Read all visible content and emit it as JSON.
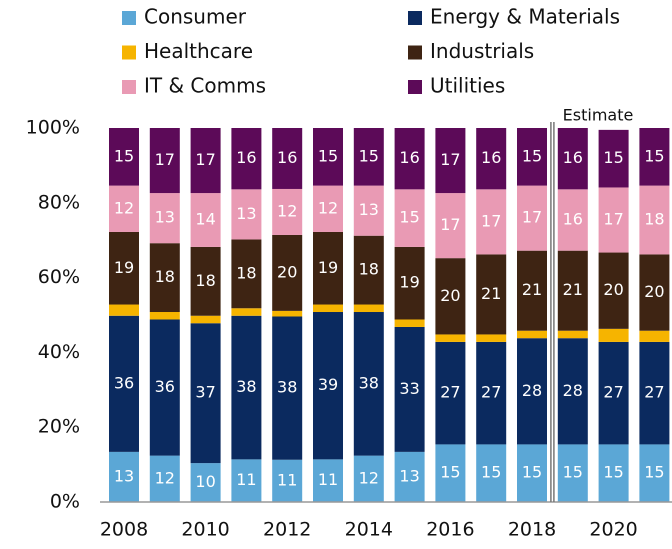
{
  "chart_data": {
    "type": "stacked_bar",
    "categories": [
      "2008",
      null,
      "2010",
      null,
      "2012",
      null,
      "2014",
      null,
      "2016",
      null,
      "2018",
      null,
      "2020",
      null
    ],
    "series": [
      {
        "name": "Consumer",
        "color": "#5ba7d6",
        "values": [
          13.4,
          12.4,
          10.4,
          11.4,
          11.3,
          11.4,
          12.4,
          13.4,
          15.4,
          15.4,
          15.4,
          15.4,
          15.4,
          15.4
        ],
        "value_labels": [
          "13",
          "12",
          "10",
          "11",
          "11",
          "11",
          "12",
          "13",
          "15",
          "15",
          "15",
          "15",
          "15",
          "15"
        ]
      },
      {
        "name": "Energy & Materials",
        "color": "#0b2a5f",
        "values": [
          36.4,
          36.4,
          37.4,
          38.4,
          38.3,
          39.4,
          38.4,
          33.4,
          27.4,
          27.4,
          28.4,
          28.4,
          27.4,
          27.4
        ],
        "value_labels": [
          "36",
          "36",
          "37",
          "38",
          "38",
          "39",
          "38",
          "33",
          "27",
          "27",
          "28",
          "28",
          "27",
          "27"
        ]
      },
      {
        "name": "Healthcare",
        "color": "#f6b400",
        "values": [
          3,
          2,
          2,
          2,
          1.5,
          2,
          2,
          2,
          2,
          2,
          2,
          2,
          3.5,
          3
        ]
      },
      {
        "name": "Industrials",
        "color": "#3e2413",
        "values": [
          19.4,
          18.4,
          18.4,
          18.4,
          20.3,
          19.4,
          18.4,
          19.4,
          20.4,
          21.4,
          21.4,
          21.4,
          20.4,
          20.4
        ],
        "value_labels": [
          "19",
          "18",
          "18",
          "18",
          "20",
          "19",
          "18",
          "19",
          "20",
          "21",
          "21",
          "21",
          "20",
          "20"
        ]
      },
      {
        "name": "IT  & Comms",
        "color": "#e99ab4",
        "values": [
          12.4,
          13.4,
          14.4,
          13.4,
          12.3,
          12.4,
          13.4,
          15.4,
          17.4,
          17.4,
          17.4,
          16.4,
          17.4,
          18.4
        ],
        "value_labels": [
          "12",
          "13",
          "14",
          "13",
          "12",
          "12",
          "13",
          "15",
          "17",
          "17",
          "17",
          "16",
          "17",
          "18"
        ]
      },
      {
        "name": "Utilities",
        "color": "#5c0a58",
        "values": [
          15.4,
          17.4,
          17.4,
          16.4,
          16.3,
          15.4,
          15.4,
          16.4,
          17.4,
          16.4,
          15.4,
          16.4,
          15.4,
          15.4
        ],
        "value_labels": [
          "15",
          "17",
          "17",
          "16",
          "16",
          "15",
          "15",
          "16",
          "17",
          "16",
          "15",
          "16",
          "15",
          "15"
        ]
      }
    ],
    "annotation": "Estimate",
    "ylim": [
      0,
      100
    ],
    "yticks": [
      {
        "value": 0,
        "label": "0%"
      },
      {
        "value": 20,
        "label": "20%"
      },
      {
        "value": 40,
        "label": "40%"
      },
      {
        "value": 60,
        "label": "60%"
      },
      {
        "value": 80,
        "label": "80%"
      },
      {
        "value": 100,
        "label": "100%"
      }
    ]
  }
}
